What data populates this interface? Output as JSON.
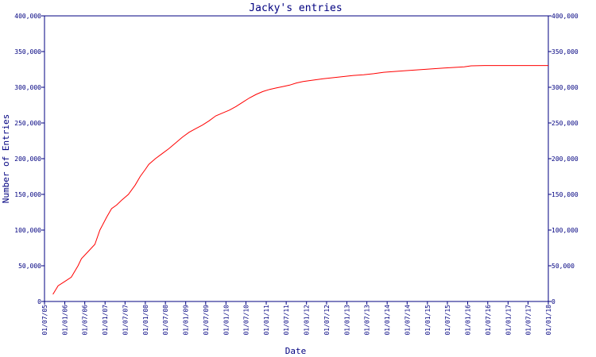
{
  "chart_data": {
    "type": "line",
    "title": "Jacky's entries",
    "xlabel": "Date",
    "ylabel": "Number of Entries",
    "ylim": [
      0,
      400000
    ],
    "yticks": [
      0,
      50000,
      100000,
      150000,
      200000,
      250000,
      300000,
      350000,
      400000
    ],
    "ytick_labels": [
      "0",
      "50,000",
      "100,000",
      "150,000",
      "200,000",
      "250,000",
      "300,000",
      "350,000",
      "400,000"
    ],
    "xlim": [
      "2005-07-01",
      "2018-01-01"
    ],
    "xticks": [
      "2005-07-01",
      "2006-01-01",
      "2006-07-01",
      "2007-01-01",
      "2007-07-01",
      "2008-01-01",
      "2008-07-01",
      "2009-01-01",
      "2009-07-01",
      "2010-01-01",
      "2010-07-01",
      "2011-01-01",
      "2011-07-01",
      "2012-01-01",
      "2012-07-01",
      "2013-01-01",
      "2013-07-01",
      "2014-01-01",
      "2014-07-01",
      "2015-01-01",
      "2015-07-01",
      "2016-01-01",
      "2016-07-01",
      "2017-01-01",
      "2017-07-01",
      "2018-01-01"
    ],
    "xtick_labels": [
      "01/07/05",
      "01/01/06",
      "01/07/06",
      "01/01/07",
      "01/07/07",
      "01/01/08",
      "01/07/08",
      "01/01/09",
      "01/07/09",
      "01/01/10",
      "01/07/10",
      "01/01/11",
      "01/07/11",
      "01/01/12",
      "01/07/12",
      "01/01/13",
      "01/07/13",
      "01/01/14",
      "01/07/14",
      "01/01/15",
      "01/07/15",
      "01/01/16",
      "01/07/16",
      "01/01/17",
      "01/07/17",
      "01/01/18"
    ],
    "grid": false,
    "right_axis": true,
    "line_color": "#ff0000",
    "axis_color": "#000080",
    "series": [
      {
        "x": [
          "2005-09-15",
          "2005-11-01",
          "2006-01-01",
          "2006-03-01",
          "2006-05-01",
          "2006-06-01",
          "2006-08-01",
          "2006-10-01",
          "2006-11-15",
          "2007-01-15",
          "2007-03-01",
          "2007-04-15",
          "2007-06-01",
          "2007-08-01",
          "2007-10-01",
          "2007-11-15",
          "2008-01-01",
          "2008-02-01",
          "2008-04-01",
          "2008-06-01",
          "2008-08-01",
          "2008-10-01",
          "2008-12-01",
          "2009-02-01",
          "2009-04-01",
          "2009-06-01",
          "2009-08-01",
          "2009-10-01",
          "2009-12-01",
          "2010-02-01",
          "2010-04-01",
          "2010-06-01",
          "2010-08-01",
          "2010-10-01",
          "2010-12-01",
          "2011-02-01",
          "2011-04-01",
          "2011-06-01",
          "2011-08-01",
          "2011-10-01",
          "2011-12-01",
          "2012-03-01",
          "2012-06-01",
          "2012-09-01",
          "2012-12-01",
          "2013-03-01",
          "2013-06-01",
          "2013-09-01",
          "2013-12-01",
          "2014-06-01",
          "2014-12-01",
          "2015-06-01",
          "2015-12-01",
          "2016-02-01",
          "2016-06-01",
          "2017-01-01",
          "2017-06-01",
          "2018-01-01"
        ],
        "y": [
          10000,
          22000,
          28000,
          34000,
          50000,
          60000,
          70000,
          80000,
          100000,
          118000,
          130000,
          135000,
          142000,
          150000,
          163000,
          175000,
          185000,
          192000,
          200000,
          207000,
          214000,
          222000,
          230000,
          237000,
          242000,
          247000,
          253000,
          260000,
          264000,
          268000,
          273000,
          279000,
          285000,
          290000,
          294000,
          297000,
          299000,
          301000,
          303000,
          306000,
          308000,
          310000,
          312000,
          313500,
          315000,
          316500,
          317500,
          319000,
          321000,
          323000,
          325000,
          327000,
          328500,
          330000,
          330500,
          330500,
          330500,
          330500
        ]
      }
    ]
  }
}
